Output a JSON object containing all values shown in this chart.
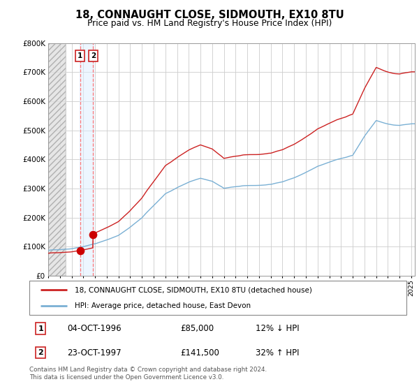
{
  "title": "18, CONNAUGHT CLOSE, SIDMOUTH, EX10 8TU",
  "subtitle": "Price paid vs. HM Land Registry's House Price Index (HPI)",
  "legend_line1": "18, CONNAUGHT CLOSE, SIDMOUTH, EX10 8TU (detached house)",
  "legend_line2": "HPI: Average price, detached house, East Devon",
  "sale1_date": "04-OCT-1996",
  "sale1_price": "£85,000",
  "sale1_hpi": "12% ↓ HPI",
  "sale2_date": "23-OCT-1997",
  "sale2_price": "£141,500",
  "sale2_hpi": "32% ↑ HPI",
  "footnote": "Contains HM Land Registry data © Crown copyright and database right 2024.\nThis data is licensed under the Open Government Licence v3.0.",
  "ylim": [
    0,
    800000
  ],
  "xlim_start": 1994.0,
  "xlim_end": 2025.3,
  "sale1_year": 1996.76,
  "sale1_value": 85000,
  "sale2_year": 1997.81,
  "sale2_value": 141500,
  "hpi_key_years": [
    1994,
    1995,
    1996,
    1997,
    1998,
    1999,
    2000,
    2001,
    2002,
    2003,
    2004,
    2005,
    2006,
    2007,
    2008,
    2009,
    2010,
    2011,
    2012,
    2013,
    2014,
    2015,
    2016,
    2017,
    2018,
    2019,
    2020,
    2021,
    2022,
    2023,
    2024,
    2025
  ],
  "hpi_key_values": [
    75,
    78,
    82,
    88,
    97,
    108,
    122,
    145,
    173,
    208,
    243,
    262,
    278,
    288,
    280,
    258,
    263,
    265,
    267,
    270,
    278,
    292,
    308,
    326,
    338,
    348,
    358,
    415,
    462,
    452,
    448,
    452
  ]
}
